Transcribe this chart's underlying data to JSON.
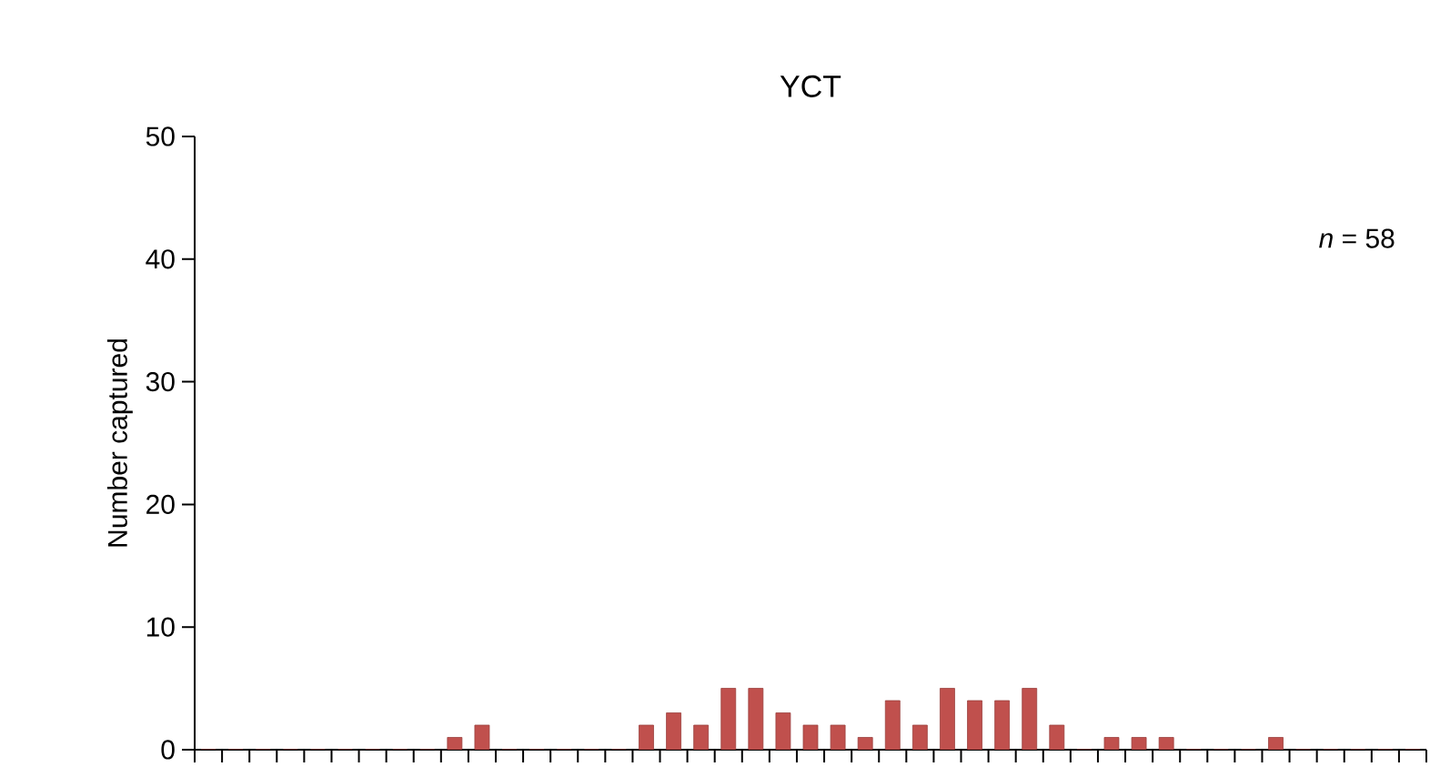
{
  "chart_data": {
    "type": "bar",
    "title": "YCT",
    "ylabel": "Number captured",
    "categories": [
      null,
      null,
      null,
      null,
      null,
      null,
      null,
      null,
      null,
      null,
      null,
      null,
      null,
      null,
      null,
      null,
      null,
      null,
      null,
      null,
      null,
      null,
      null,
      null,
      null,
      null,
      null,
      null,
      null,
      null,
      null,
      null,
      null,
      null,
      null,
      null,
      null,
      null,
      null,
      null,
      null,
      null,
      null,
      null,
      null
    ],
    "values": [
      0,
      0,
      0,
      0,
      0,
      0,
      0,
      0,
      0,
      1,
      2,
      0,
      0,
      0,
      0,
      0,
      2,
      3,
      2,
      5,
      5,
      3,
      2,
      2,
      1,
      4,
      2,
      5,
      4,
      4,
      5,
      2,
      0,
      1,
      1,
      1,
      0,
      0,
      0,
      1,
      0,
      0,
      0,
      0,
      0
    ],
    "color": "#c0504d",
    "ylim": [
      0,
      50
    ],
    "yticks": [
      0,
      10,
      20,
      30,
      40,
      50
    ],
    "tick_labels": "y",
    "annotations": [
      "*n* = 58"
    ]
  }
}
